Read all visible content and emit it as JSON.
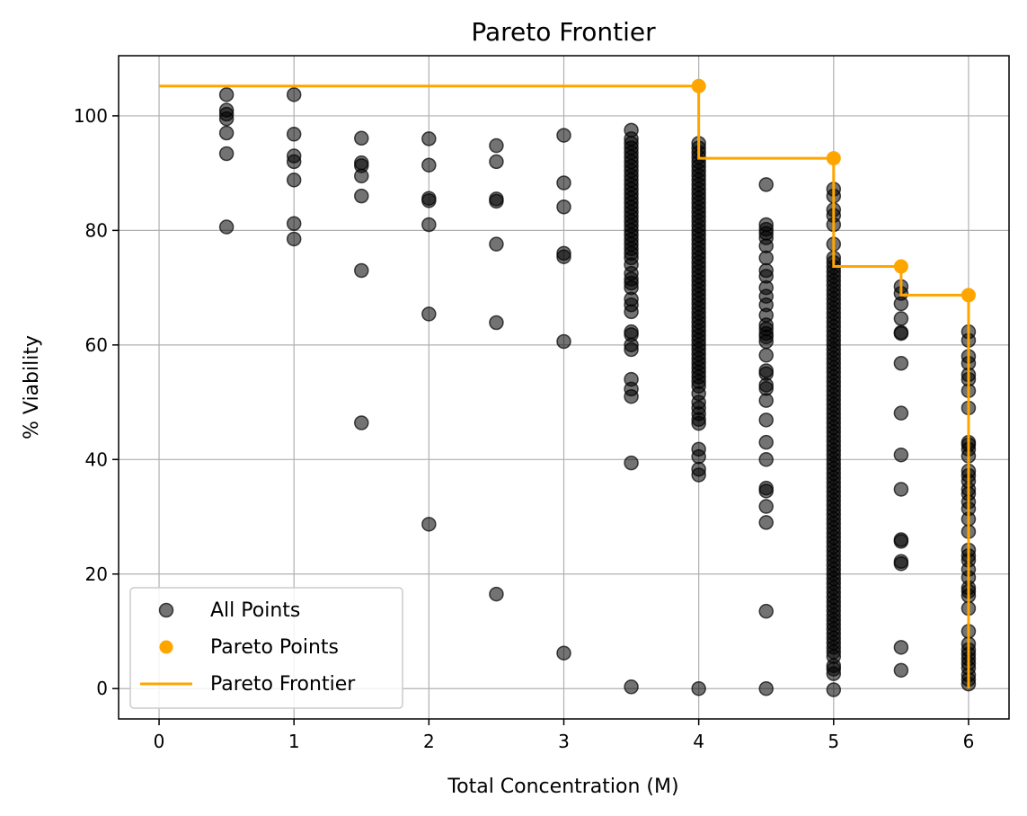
{
  "chart_data": {
    "type": "scatter",
    "title": "Pareto Frontier",
    "xlabel": "Total Concentration (M)",
    "ylabel": "% Viability",
    "xlim": [
      -0.3,
      6.3
    ],
    "ylim": [
      -5.3,
      110.5
    ],
    "xticks": [
      0,
      1,
      2,
      3,
      4,
      5,
      6
    ],
    "yticks": [
      0,
      20,
      40,
      60,
      80,
      100
    ],
    "grid": true,
    "legend_position": "lower-left",
    "colors": {
      "all_points": "#000000",
      "pareto": "#FFA500",
      "grid": "#b0b0b0"
    },
    "series": [
      {
        "name": "All Points",
        "kind": "scatter",
        "points": [
          {
            "x": 0.5,
            "y": [
              103.7,
              101.0,
              100.3,
              99.5,
              97.0,
              93.4,
              80.6
            ]
          },
          {
            "x": 1.0,
            "y": [
              103.7,
              96.8,
              93.0,
              92.0,
              88.8,
              81.2,
              78.5
            ]
          },
          {
            "x": 1.5,
            "y": [
              96.1,
              91.8,
              91.3,
              89.5,
              86.0,
              73.0,
              46.4
            ]
          },
          {
            "x": 2.0,
            "y": [
              96.0,
              91.4,
              85.6,
              85.2,
              81.0,
              65.4,
              28.7
            ]
          },
          {
            "x": 2.5,
            "y": [
              94.8,
              92.0,
              85.5,
              85.1,
              77.6,
              63.9,
              16.5
            ]
          },
          {
            "x": 3.0,
            "y": [
              96.6,
              88.3,
              84.1,
              76.0,
              75.4,
              60.6,
              6.2
            ]
          },
          {
            "x": 3.5,
            "y": [
              97.5,
              96.0,
              95.2,
              94.4,
              93.6,
              92.8,
              92.0,
              91.2,
              90.4,
              89.6,
              88.8,
              88.0,
              87.2,
              86.4,
              85.6,
              84.8,
              84.0,
              83.2,
              82.4,
              81.6,
              80.8,
              80.0,
              79.2,
              78.4,
              77.6,
              76.8,
              76.0,
              75.2,
              74.0,
              72.5,
              71.5,
              70.8,
              70.0,
              68.0,
              67.0,
              65.8,
              62.3,
              61.8,
              60.0,
              59.2,
              54.0,
              52.3,
              51.0,
              39.4,
              0.3
            ]
          },
          {
            "x": 4.0,
            "y": [
              95.2,
              94.4,
              93.6,
              92.8,
              92.0,
              91.2,
              90.4,
              89.6,
              88.8,
              88.0,
              87.2,
              86.4,
              85.6,
              84.8,
              84.0,
              83.2,
              82.4,
              81.6,
              80.8,
              80.0,
              79.2,
              78.4,
              77.6,
              76.8,
              76.0,
              75.2,
              74.4,
              73.6,
              72.8,
              72.0,
              71.2,
              70.4,
              69.6,
              68.8,
              68.0,
              67.2,
              66.4,
              65.6,
              64.8,
              64.0,
              63.2,
              62.4,
              61.6,
              60.8,
              60.0,
              59.2,
              58.4,
              57.6,
              56.8,
              56.0,
              55.2,
              54.4,
              53.6,
              52.8,
              51.5,
              50.0,
              49.0,
              48.0,
              47.0,
              46.3,
              41.8,
              40.5,
              38.3,
              37.3,
              0.0
            ]
          },
          {
            "x": 4.5,
            "y": [
              88.0,
              81.0,
              80.2,
              79.5,
              78.7,
              77.3,
              75.2,
              73.0,
              72.0,
              70.0,
              68.5,
              67.0,
              65.2,
              63.5,
              62.8,
              62.0,
              61.4,
              60.6,
              58.2,
              55.5,
              55.0,
              53.0,
              52.4,
              50.3,
              46.9,
              43.0,
              40.0,
              35.0,
              34.5,
              31.8,
              29.0,
              13.5,
              0.0
            ]
          },
          {
            "x": 5.0,
            "y": [
              87.2,
              86.0,
              83.6,
              82.6,
              81.0,
              77.6,
              75.2,
              74.4,
              73.6,
              72.8,
              72.0,
              71.2,
              70.4,
              69.6,
              68.8,
              68.0,
              67.2,
              66.4,
              65.6,
              64.8,
              64.0,
              63.2,
              62.4,
              61.6,
              60.8,
              60.0,
              59.2,
              58.4,
              57.6,
              56.8,
              56.0,
              55.2,
              54.4,
              53.6,
              52.8,
              52.0,
              51.2,
              50.4,
              49.6,
              48.8,
              48.0,
              47.2,
              46.4,
              45.6,
              44.8,
              44.0,
              43.2,
              42.4,
              41.6,
              40.8,
              40.0,
              39.2,
              38.4,
              37.6,
              36.8,
              36.0,
              35.2,
              34.4,
              33.6,
              32.8,
              32.0,
              31.2,
              30.4,
              29.6,
              28.8,
              28.0,
              27.2,
              26.4,
              25.6,
              24.8,
              24.0,
              23.2,
              22.4,
              21.6,
              20.8,
              20.0,
              19.2,
              18.4,
              17.6,
              16.8,
              16.0,
              15.2,
              14.4,
              13.6,
              12.8,
              12.0,
              11.2,
              10.4,
              9.6,
              8.8,
              8.0,
              7.2,
              6.4,
              5.6,
              4.0,
              3.4,
              2.6,
              -0.2
            ]
          },
          {
            "x": 5.5,
            "y": [
              70.2,
              69.0,
              67.2,
              64.6,
              62.2,
              62.0,
              56.8,
              48.1,
              40.8,
              34.8,
              26.0,
              25.7,
              22.2,
              21.8,
              7.2,
              3.2
            ]
          },
          {
            "x": 6.0,
            "y": [
              62.3,
              60.8,
              58.0,
              56.8,
              54.8,
              54.0,
              52.0,
              49.0,
              43.0,
              42.6,
              41.8,
              40.6,
              38.0,
              37.2,
              36.2,
              34.8,
              34.0,
              32.6,
              31.4,
              29.6,
              27.4,
              24.2,
              23.2,
              22.4,
              20.8,
              19.4,
              17.6,
              17.0,
              16.2,
              14.0,
              10.0,
              7.8,
              6.8,
              6.0,
              5.2,
              4.4,
              3.6,
              2.4,
              1.6,
              0.8
            ]
          }
        ]
      },
      {
        "name": "Pareto Points",
        "kind": "scatter",
        "x": [
          4.0,
          5.0,
          5.5,
          6.0
        ],
        "y": [
          105.2,
          92.6,
          73.7,
          68.7
        ]
      },
      {
        "name": "Pareto Frontier",
        "kind": "step-line",
        "x": [
          0.0,
          4.0,
          4.0,
          5.0,
          5.0,
          5.5,
          5.5,
          6.0,
          6.0
        ],
        "y": [
          105.2,
          105.2,
          92.6,
          92.6,
          73.7,
          73.7,
          68.7,
          68.7,
          0.0
        ]
      }
    ]
  }
}
